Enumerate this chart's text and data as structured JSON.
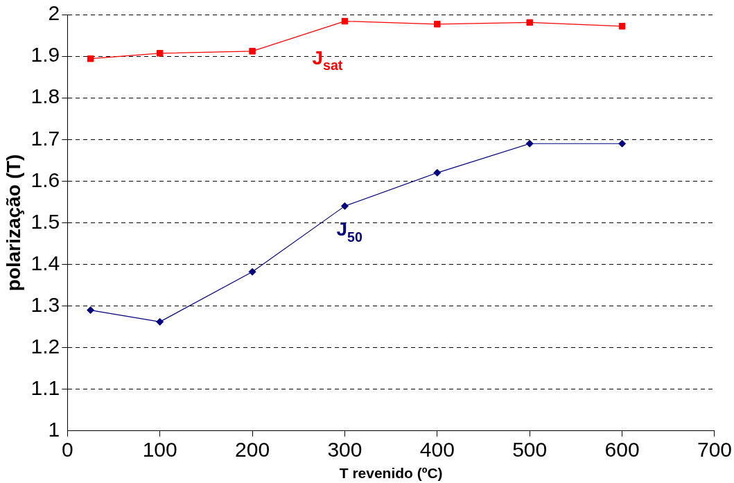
{
  "chart_data": {
    "type": "line",
    "xlabel": "T revenido (ºC)",
    "ylabel": "polarização (T)",
    "x": [
      25,
      100,
      200,
      300,
      400,
      500,
      600
    ],
    "series": [
      {
        "name": "J$_{sat}$",
        "color": "#ff0000",
        "marker": "square",
        "values": [
          1.894,
          1.907,
          1.912,
          1.984,
          1.977,
          1.981,
          1.972
        ]
      },
      {
        "name": "J$_{50}$",
        "color": "#000080",
        "marker": "diamond",
        "values": [
          1.29,
          1.262,
          1.382,
          1.54,
          1.62,
          1.69,
          1.69
        ]
      }
    ],
    "xlim": [
      0,
      700
    ],
    "xticks": [
      0,
      100,
      200,
      300,
      400,
      500,
      600,
      700
    ],
    "ylim": [
      1,
      2
    ],
    "yticks": [
      1,
      1.1,
      1.2,
      1.3,
      1.4,
      1.5,
      1.6,
      1.7,
      1.8,
      1.9,
      2
    ],
    "grid": "y",
    "legend": false,
    "line_style": "solid"
  }
}
